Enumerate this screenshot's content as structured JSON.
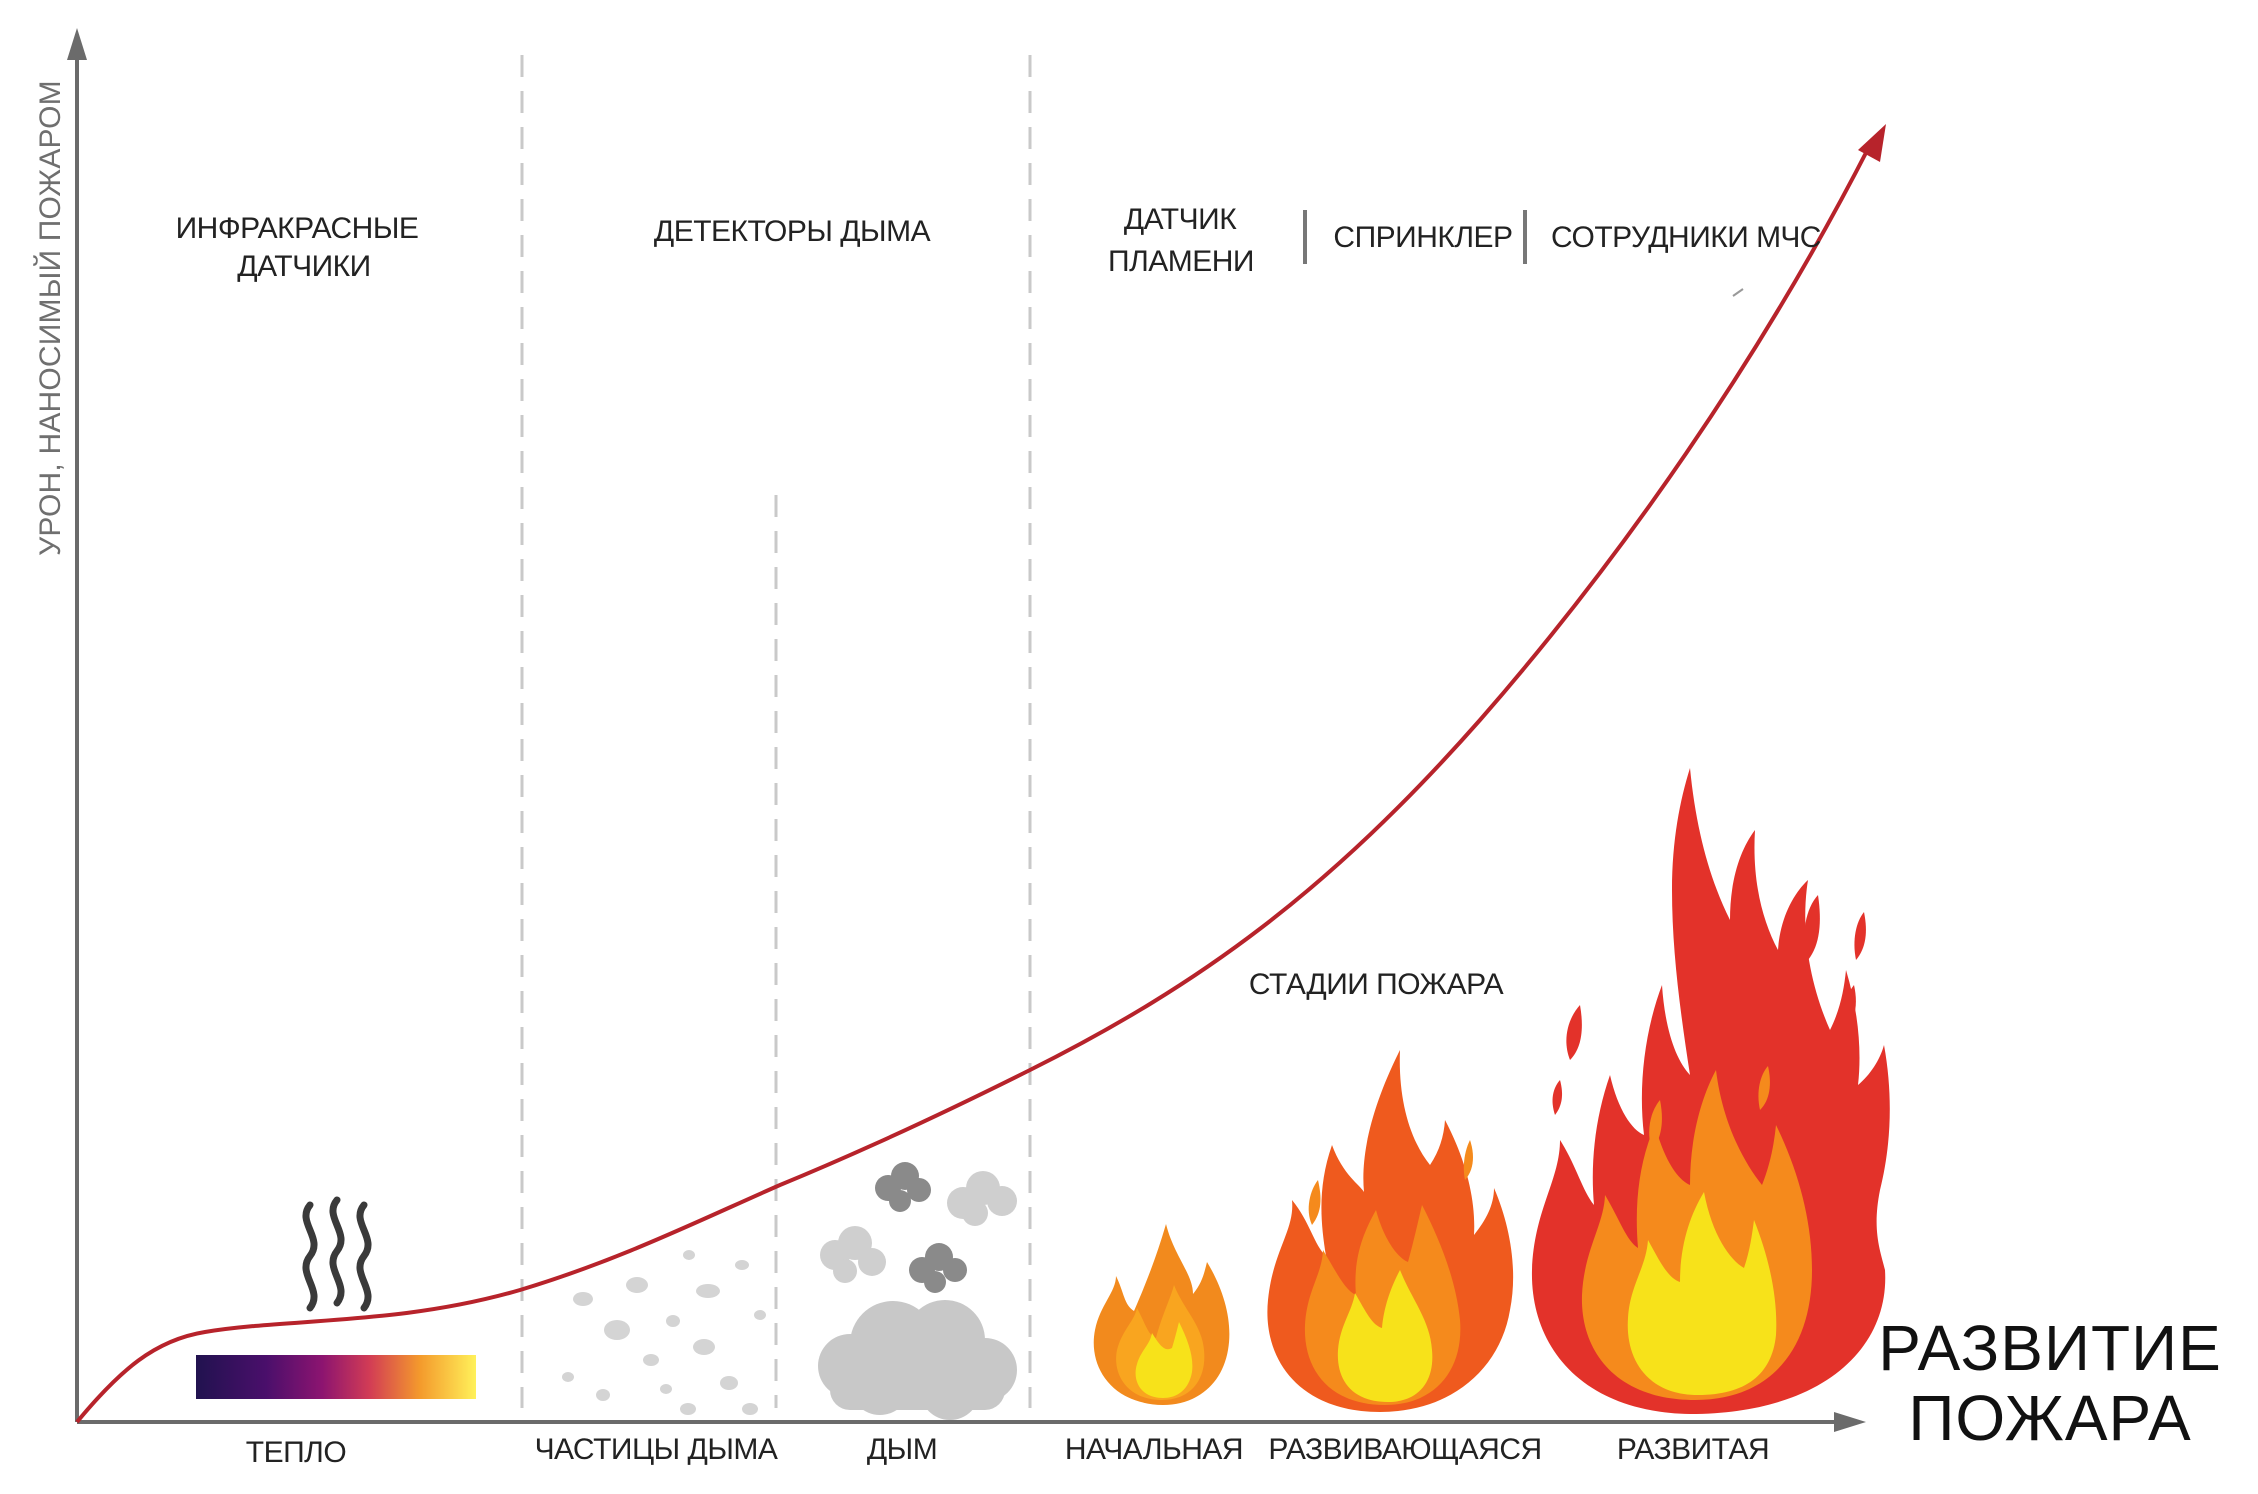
{
  "axes": {
    "y_label": "УРОН,  НАНОСИМЫЙ ПОЖАРОМ",
    "x_title_line1": "РАЗВИТИЕ",
    "x_title_line2": "ПОЖАРА"
  },
  "detectors": {
    "infrared_line1": "ИНФРАКРАСНЫЕ",
    "infrared_line2": "ДАТЧИКИ",
    "smoke": "ДЕТЕКТОРЫ ДЫМА",
    "flame_line1": "ДАТЧИК",
    "flame_line2": "ПЛАМЕНИ",
    "sprinkler": "СПРИНКЛЕР",
    "emergency": "СОТРУДНИКИ МЧС"
  },
  "stages_title": "СТАДИИ ПОЖАРА",
  "bottom_labels": {
    "heat": "ТЕПЛО",
    "smoke_particles": "ЧАСТИЦЫ ДЫМА",
    "smoke": "ДЫМ",
    "initial": "НАЧАЛЬНАЯ",
    "developing": "РАЗВИВАЮЩАЯСЯ",
    "developed": "РАЗВИТАЯ"
  },
  "icons": {
    "heat_waves": "heat-waves-icon",
    "heat_gradient": "heat-gradient-bar",
    "smoke_particles": "smoke-particles-icon",
    "smoke_cloud": "smoke-cloud-icon",
    "flame_small": "flame-small-icon",
    "flame_medium": "flame-medium-icon",
    "flame_large": "flame-large-icon"
  },
  "colors": {
    "curve": "#b7232b",
    "axis": "#6b6b6b",
    "divider": "#c9c9c9",
    "flame_outer_red": "#e3322a",
    "flame_outer_orange": "#ef5a1e",
    "flame_mid": "#f58a1c",
    "flame_core": "#f7e21a",
    "smoke_light": "#c8c8c8",
    "smoke_dark": "#8a8a8a"
  }
}
